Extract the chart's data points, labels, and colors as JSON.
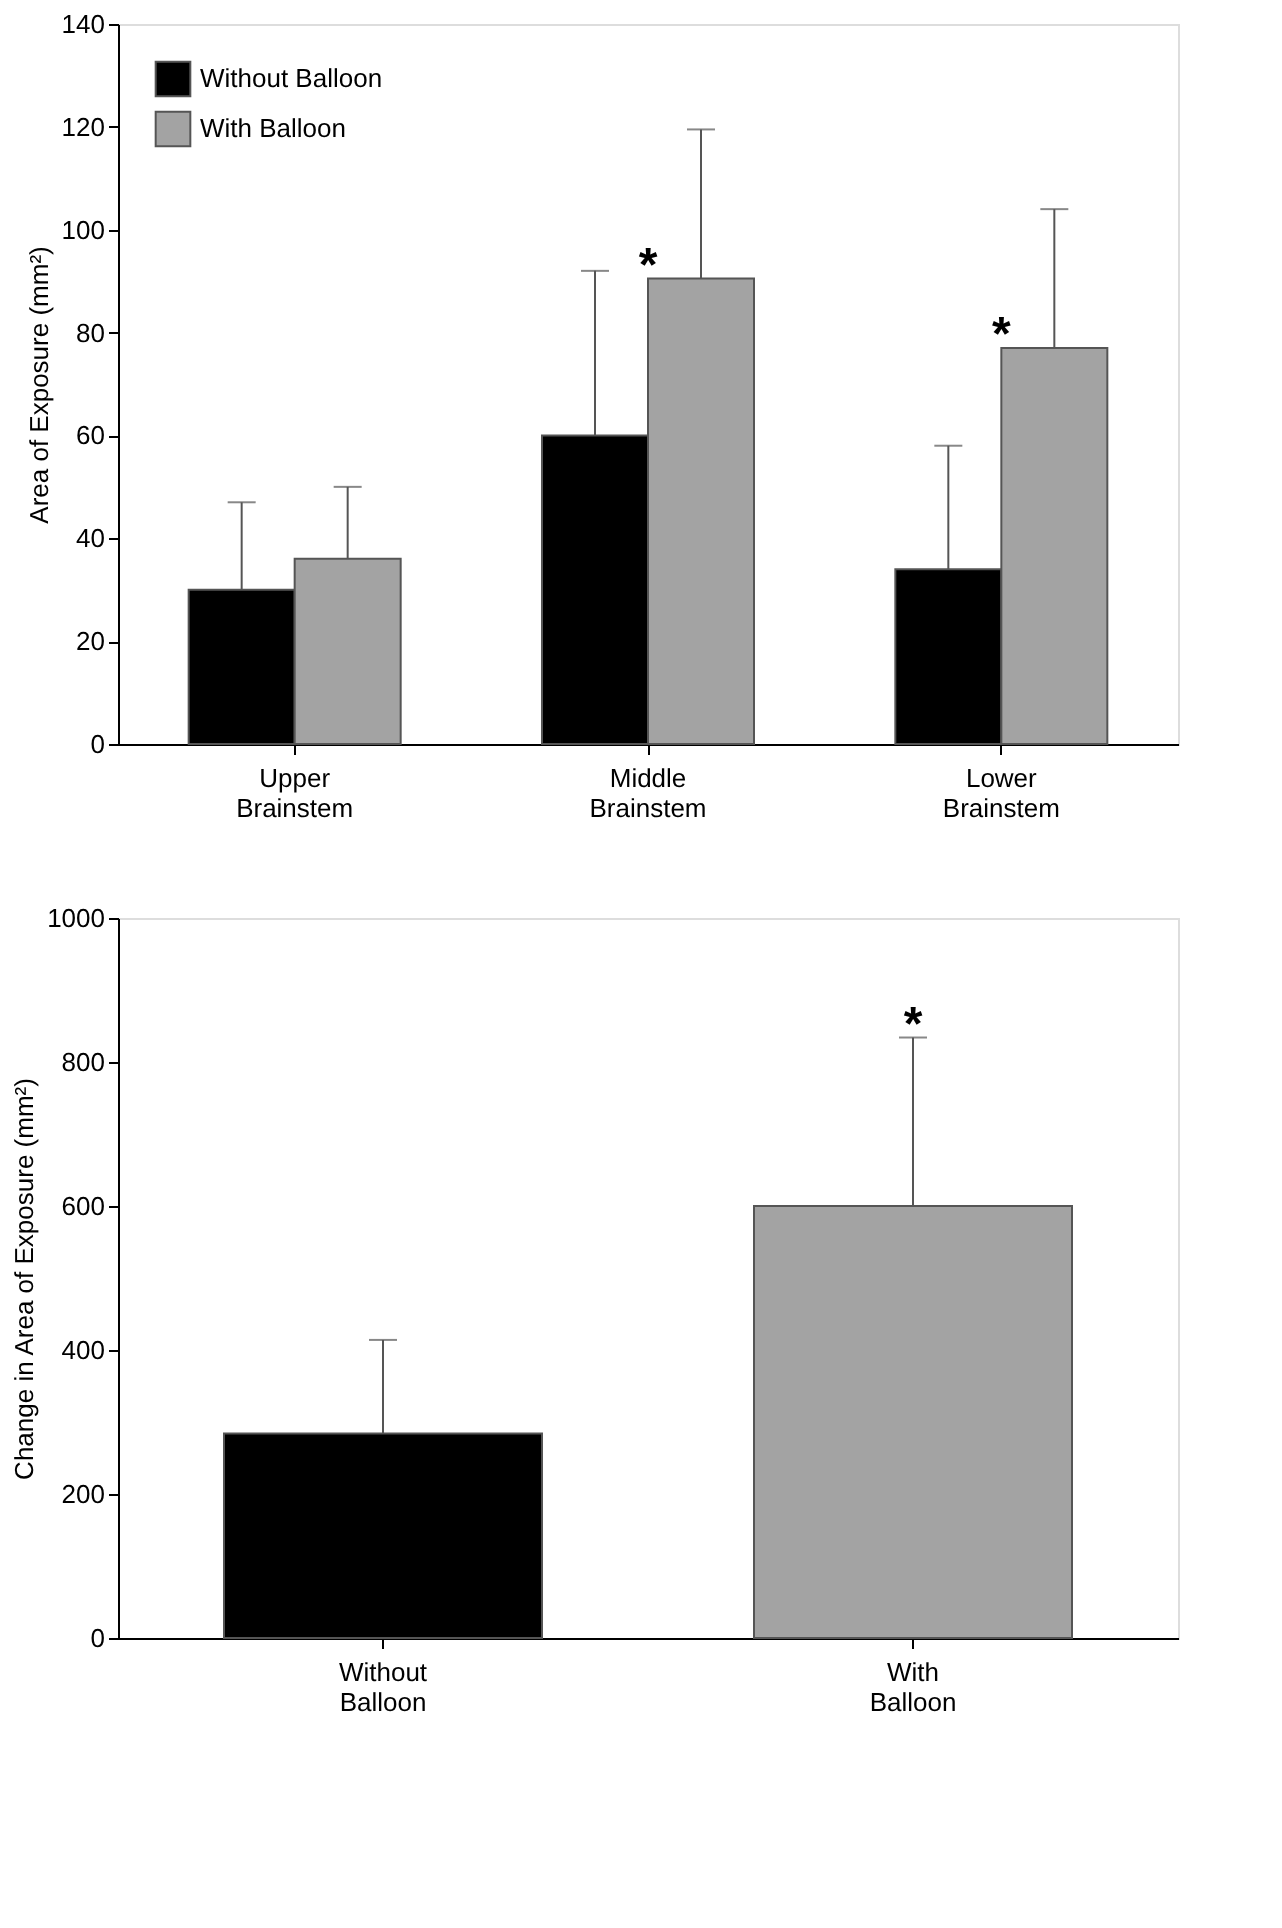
{
  "chart_data": [
    {
      "type": "bar",
      "ylabel": "Area of Exposure (mm²)",
      "categories": [
        "Upper Brainstem",
        "Middle Brainstem",
        "Lower Brainstem"
      ],
      "series": [
        {
          "name": "Without Balloon",
          "color": "#000000",
          "values": [
            30,
            60,
            34
          ],
          "errors": [
            [
              30,
              47
            ],
            [
              60,
              92
            ],
            [
              34,
              58
            ]
          ]
        },
        {
          "name": "With Balloon",
          "color": "#a3a3a3",
          "values": [
            36,
            90.5,
            77
          ],
          "errors": [
            [
              36,
              50
            ],
            [
              90.5,
              119.5
            ],
            [
              77,
              104
            ]
          ]
        }
      ],
      "ylim": [
        0,
        140
      ],
      "yticks": [
        0,
        20,
        40,
        60,
        80,
        100,
        120,
        140
      ],
      "grid": false,
      "legend": "top left",
      "annotations": [
        {
          "text": "*",
          "x": "Middle Brainstem",
          "y": 90.5
        },
        {
          "text": "*",
          "x": "Lower Brainstem",
          "y": 77
        }
      ]
    },
    {
      "type": "bar",
      "ylabel": "Change in Area of Exposure (mm²)",
      "categories": [
        "Without Balloon",
        "With Balloon"
      ],
      "values": [
        284,
        600
      ],
      "colors": [
        "#000000",
        "#a3a3a3"
      ],
      "errors": [
        [
          284,
          414
        ],
        [
          600,
          834
        ]
      ],
      "ylim": [
        0,
        1000
      ],
      "yticks": [
        0,
        200,
        400,
        600,
        800,
        1000
      ],
      "grid": false,
      "legend": false,
      "annotations": [
        {
          "text": "*",
          "x": "With Balloon",
          "y": 834
        }
      ]
    }
  ]
}
